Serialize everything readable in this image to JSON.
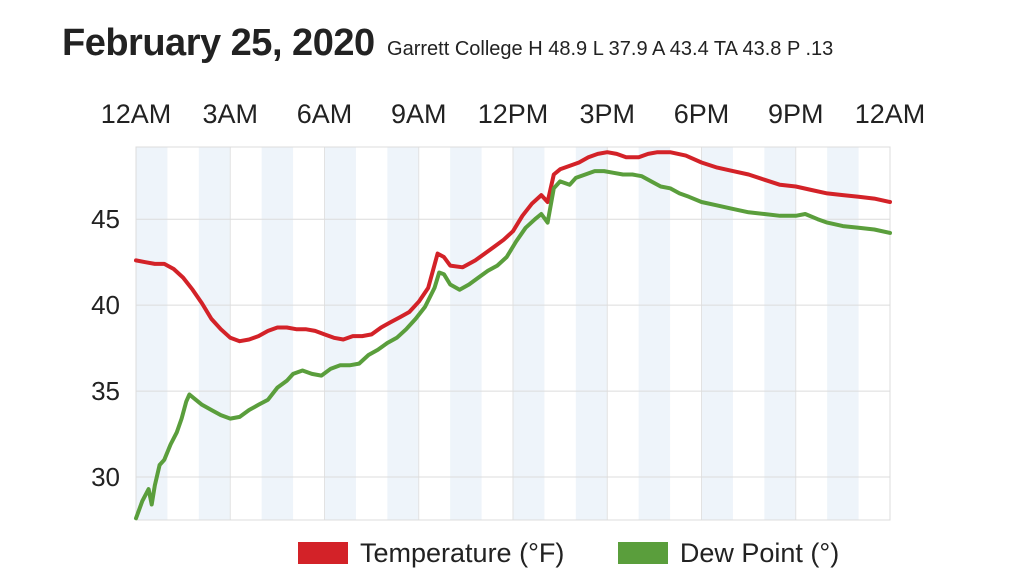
{
  "header": {
    "date": "February 25, 2020",
    "summary": "Garrett College H 48.9 L 37.9 A 43.4 TA 43.8 P .13"
  },
  "chart_data": {
    "type": "line",
    "x_tick_labels": [
      "12AM",
      "3AM",
      "6AM",
      "9AM",
      "12PM",
      "3PM",
      "6PM",
      "9PM",
      "12AM"
    ],
    "x_range_hours": [
      0,
      24
    ],
    "y_ticks": [
      30,
      35,
      40,
      45
    ],
    "ylim": [
      27.5,
      49.2
    ],
    "grid": true,
    "band_fill": "#eef4fa",
    "series": [
      {
        "name": "Temperature (°F)",
        "color": "#d32228",
        "points": [
          [
            0,
            42.6
          ],
          [
            0.3,
            42.5
          ],
          [
            0.6,
            42.4
          ],
          [
            0.9,
            42.4
          ],
          [
            1.2,
            42.1
          ],
          [
            1.5,
            41.6
          ],
          [
            1.8,
            40.9
          ],
          [
            2.1,
            40.1
          ],
          [
            2.4,
            39.2
          ],
          [
            2.7,
            38.6
          ],
          [
            3.0,
            38.1
          ],
          [
            3.3,
            37.9
          ],
          [
            3.6,
            38.0
          ],
          [
            3.9,
            38.2
          ],
          [
            4.2,
            38.5
          ],
          [
            4.5,
            38.7
          ],
          [
            4.8,
            38.7
          ],
          [
            5.1,
            38.6
          ],
          [
            5.4,
            38.6
          ],
          [
            5.7,
            38.5
          ],
          [
            6.0,
            38.3
          ],
          [
            6.3,
            38.1
          ],
          [
            6.6,
            38.0
          ],
          [
            6.9,
            38.2
          ],
          [
            7.2,
            38.2
          ],
          [
            7.5,
            38.3
          ],
          [
            7.8,
            38.7
          ],
          [
            8.1,
            39.0
          ],
          [
            8.4,
            39.3
          ],
          [
            8.7,
            39.6
          ],
          [
            9.0,
            40.2
          ],
          [
            9.3,
            41.0
          ],
          [
            9.6,
            43.0
          ],
          [
            9.8,
            42.8
          ],
          [
            10.0,
            42.3
          ],
          [
            10.4,
            42.2
          ],
          [
            10.8,
            42.6
          ],
          [
            11.1,
            43.0
          ],
          [
            11.4,
            43.4
          ],
          [
            11.7,
            43.8
          ],
          [
            12.0,
            44.3
          ],
          [
            12.3,
            45.2
          ],
          [
            12.6,
            45.9
          ],
          [
            12.9,
            46.4
          ],
          [
            13.1,
            46.0
          ],
          [
            13.3,
            47.6
          ],
          [
            13.5,
            47.9
          ],
          [
            13.8,
            48.1
          ],
          [
            14.1,
            48.3
          ],
          [
            14.4,
            48.6
          ],
          [
            14.7,
            48.8
          ],
          [
            15.0,
            48.9
          ],
          [
            15.3,
            48.8
          ],
          [
            15.6,
            48.6
          ],
          [
            16.0,
            48.6
          ],
          [
            16.3,
            48.8
          ],
          [
            16.6,
            48.9
          ],
          [
            17.0,
            48.9
          ],
          [
            17.5,
            48.7
          ],
          [
            18.0,
            48.3
          ],
          [
            18.5,
            48.0
          ],
          [
            19.0,
            47.8
          ],
          [
            19.5,
            47.6
          ],
          [
            20.0,
            47.3
          ],
          [
            20.5,
            47.0
          ],
          [
            21.0,
            46.9
          ],
          [
            21.5,
            46.7
          ],
          [
            22.0,
            46.5
          ],
          [
            22.5,
            46.4
          ],
          [
            23.0,
            46.3
          ],
          [
            23.5,
            46.2
          ],
          [
            24.0,
            46.0
          ]
        ]
      },
      {
        "name": "Dew Point (°)",
        "color": "#5a9e3c",
        "points": [
          [
            0,
            27.6
          ],
          [
            0.2,
            28.6
          ],
          [
            0.4,
            29.3
          ],
          [
            0.5,
            28.4
          ],
          [
            0.6,
            29.5
          ],
          [
            0.75,
            30.7
          ],
          [
            0.9,
            31.0
          ],
          [
            1.1,
            31.9
          ],
          [
            1.3,
            32.6
          ],
          [
            1.45,
            33.4
          ],
          [
            1.6,
            34.4
          ],
          [
            1.7,
            34.8
          ],
          [
            1.9,
            34.5
          ],
          [
            2.1,
            34.2
          ],
          [
            2.4,
            33.9
          ],
          [
            2.7,
            33.6
          ],
          [
            3.0,
            33.4
          ],
          [
            3.3,
            33.5
          ],
          [
            3.6,
            33.9
          ],
          [
            3.9,
            34.2
          ],
          [
            4.2,
            34.5
          ],
          [
            4.5,
            35.2
          ],
          [
            4.8,
            35.6
          ],
          [
            5.0,
            36.0
          ],
          [
            5.3,
            36.2
          ],
          [
            5.6,
            36.0
          ],
          [
            5.9,
            35.9
          ],
          [
            6.2,
            36.3
          ],
          [
            6.5,
            36.5
          ],
          [
            6.8,
            36.5
          ],
          [
            7.1,
            36.6
          ],
          [
            7.4,
            37.1
          ],
          [
            7.7,
            37.4
          ],
          [
            8.0,
            37.8
          ],
          [
            8.3,
            38.1
          ],
          [
            8.6,
            38.6
          ],
          [
            8.9,
            39.2
          ],
          [
            9.2,
            39.9
          ],
          [
            9.5,
            41.0
          ],
          [
            9.65,
            41.9
          ],
          [
            9.8,
            41.8
          ],
          [
            10.0,
            41.2
          ],
          [
            10.3,
            40.9
          ],
          [
            10.6,
            41.2
          ],
          [
            10.9,
            41.6
          ],
          [
            11.2,
            42.0
          ],
          [
            11.5,
            42.3
          ],
          [
            11.8,
            42.8
          ],
          [
            12.1,
            43.7
          ],
          [
            12.4,
            44.5
          ],
          [
            12.7,
            45.0
          ],
          [
            12.9,
            45.3
          ],
          [
            13.1,
            44.8
          ],
          [
            13.3,
            46.8
          ],
          [
            13.5,
            47.2
          ],
          [
            13.8,
            47.0
          ],
          [
            14.0,
            47.4
          ],
          [
            14.3,
            47.6
          ],
          [
            14.6,
            47.8
          ],
          [
            14.9,
            47.8
          ],
          [
            15.2,
            47.7
          ],
          [
            15.5,
            47.6
          ],
          [
            15.8,
            47.6
          ],
          [
            16.1,
            47.5
          ],
          [
            16.4,
            47.2
          ],
          [
            16.7,
            46.9
          ],
          [
            17.0,
            46.8
          ],
          [
            17.3,
            46.5
          ],
          [
            17.6,
            46.3
          ],
          [
            18.0,
            46.0
          ],
          [
            18.5,
            45.8
          ],
          [
            19.0,
            45.6
          ],
          [
            19.5,
            45.4
          ],
          [
            20.0,
            45.3
          ],
          [
            20.5,
            45.2
          ],
          [
            21.0,
            45.2
          ],
          [
            21.3,
            45.3
          ],
          [
            21.7,
            45.0
          ],
          [
            22.0,
            44.8
          ],
          [
            22.5,
            44.6
          ],
          [
            23.0,
            44.5
          ],
          [
            23.5,
            44.4
          ],
          [
            24.0,
            44.2
          ]
        ]
      }
    ]
  }
}
